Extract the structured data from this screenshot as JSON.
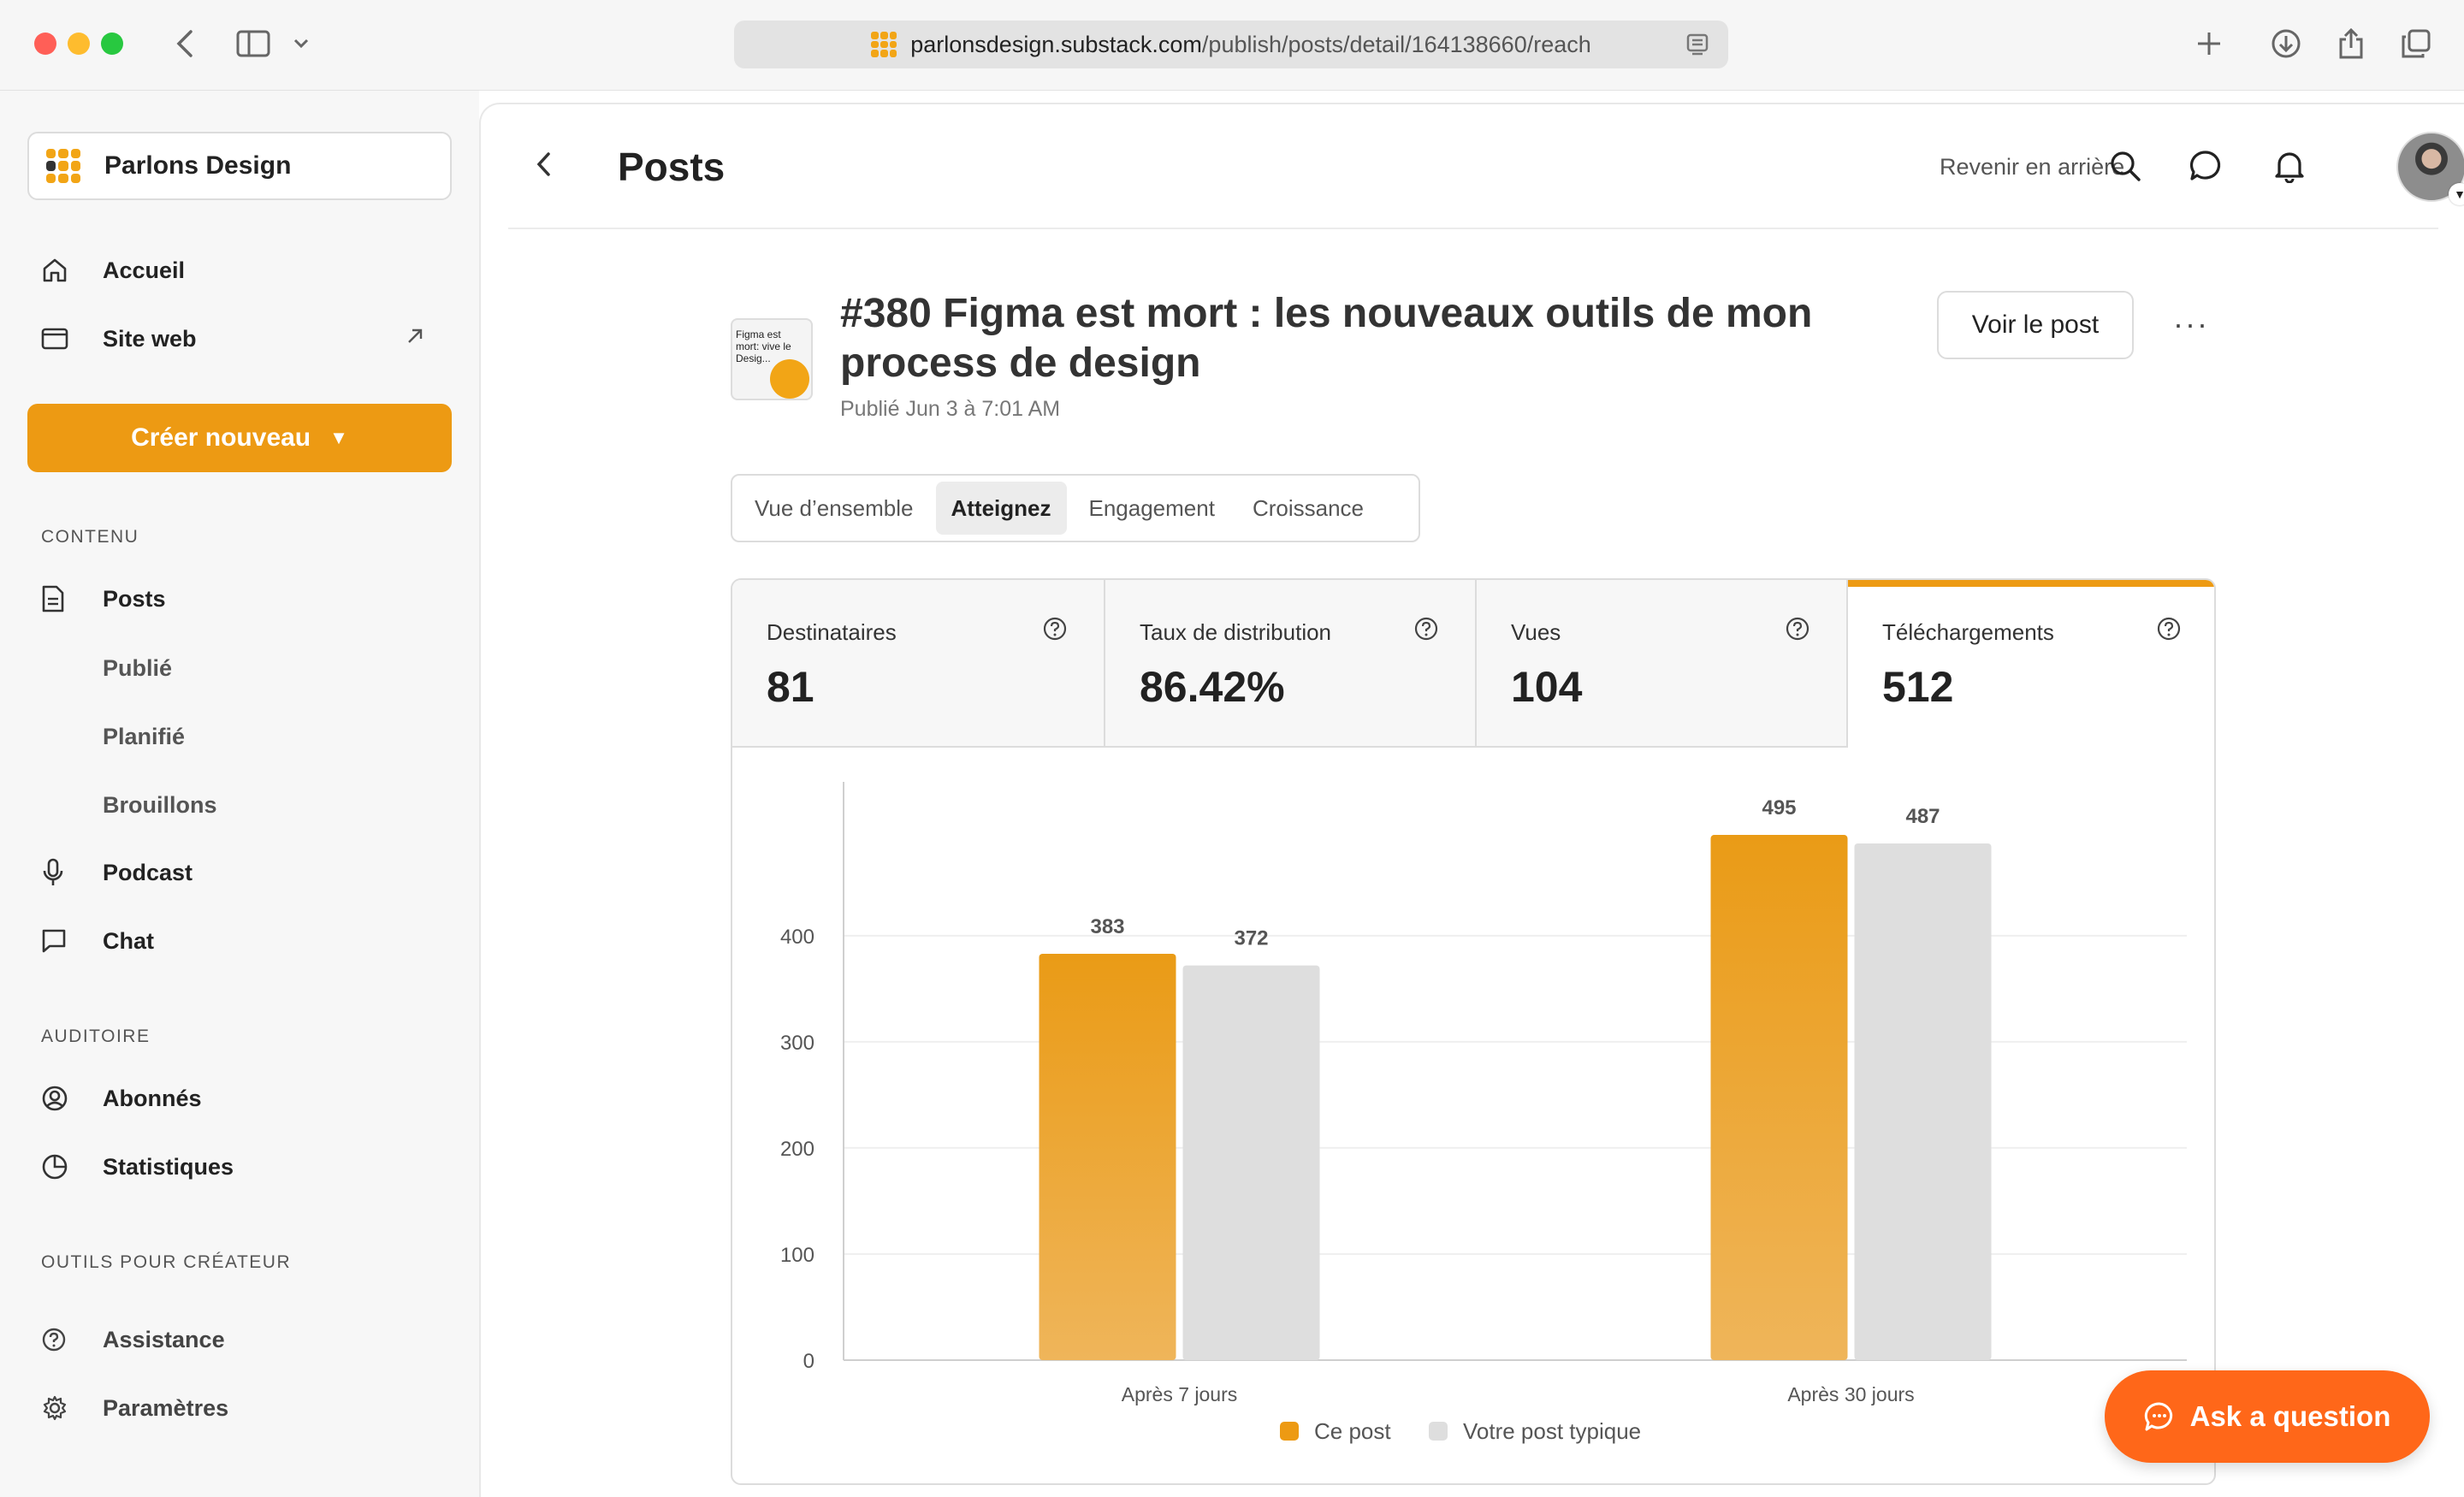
{
  "browser": {
    "url_domain": "parlonsdesign.substack.com",
    "url_path": "/publish/posts/detail/164138660/reach"
  },
  "sidebar": {
    "publication": "Parlons Design",
    "accueil": "Accueil",
    "site_web": "Site web",
    "create_label": "Créer nouveau",
    "section_contenu": "CONTENU",
    "posts": "Posts",
    "publie": "Publié",
    "planifie": "Planifié",
    "brouillons": "Brouillons",
    "podcast": "Podcast",
    "chat": "Chat",
    "section_auditoire": "AUDITOIRE",
    "abonnes": "Abonnés",
    "statistiques": "Statistiques",
    "section_outils": "OUTILS POUR CRÉATEUR",
    "assistance": "Assistance",
    "parametres": "Paramètres"
  },
  "header": {
    "title": "Posts",
    "back_link": "Revenir en arrière"
  },
  "post": {
    "thumb_text": "Figma est mort: vive le Desig...",
    "title": "#380 Figma est mort : les nouveaux outils de mon process de design",
    "date": "Publié Jun 3 à 7:01 AM",
    "view_button": "Voir le post",
    "more": "···"
  },
  "tabs": [
    "Vue d’ensemble",
    "Atteignez",
    "Engagement",
    "Croissance"
  ],
  "active_tab": 1,
  "stats": [
    {
      "label": "Destinataires",
      "value": "81"
    },
    {
      "label": "Taux de distribution",
      "value": "86.42%"
    },
    {
      "label": "Vues",
      "value": "104"
    },
    {
      "label": "Téléchargements",
      "value": "512"
    }
  ],
  "colors": {
    "accent": "#ed9a13",
    "ask": "#ff6719",
    "typical": "#dedede"
  },
  "chart_data": {
    "type": "bar",
    "categories": [
      "Après 7 jours",
      "Après 30 jours"
    ],
    "series": [
      {
        "name": "Ce post",
        "values": [
          383,
          495
        ]
      },
      {
        "name": "Votre post typique",
        "values": [
          372,
          487
        ]
      }
    ],
    "yticks": [
      0,
      100,
      200,
      300,
      400
    ],
    "ylim": [
      0,
      545
    ],
    "grid": true,
    "legend": "bottom"
  },
  "ask_button": "Ask a question"
}
